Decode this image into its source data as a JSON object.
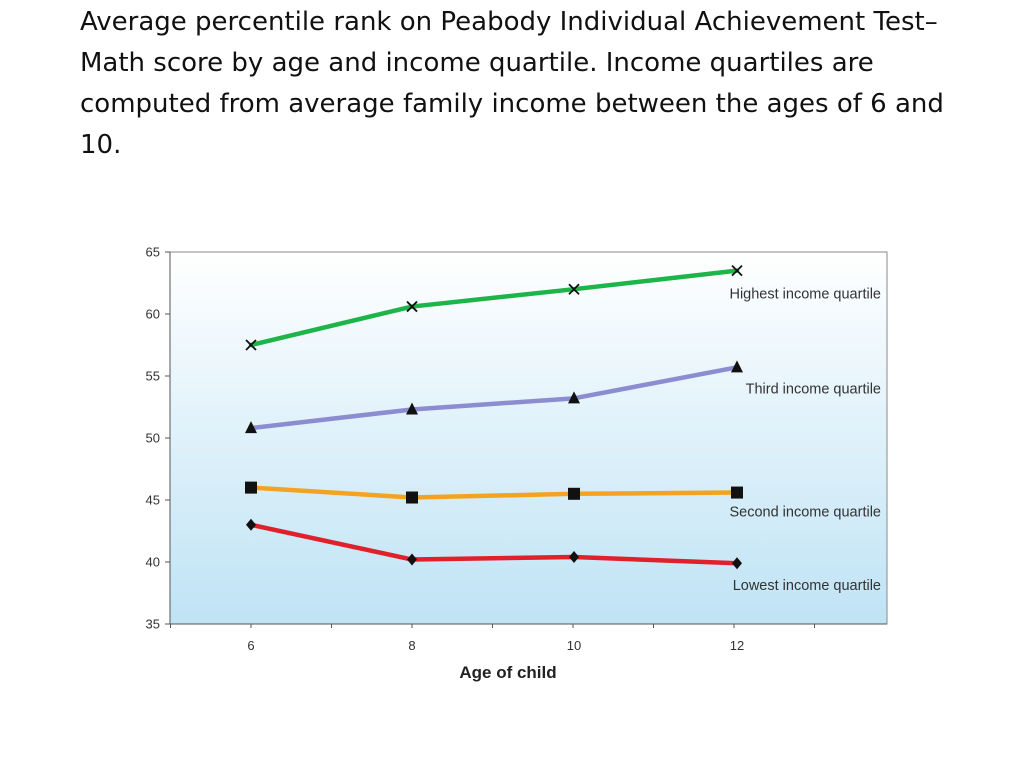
{
  "slide": {
    "title": "Average percentile rank on Peabody Individual Achievement Test–Math score by age and income quartile. Income quartiles are computed from average family income between the ages of 6 and 10."
  },
  "chart_data": {
    "type": "line",
    "xlabel": "Age of child",
    "ylabel": "",
    "x": [
      6,
      8,
      10,
      12
    ],
    "xticks": [
      "6",
      "8",
      "10",
      "12"
    ],
    "ylim": [
      35,
      65
    ],
    "yticks": [
      "35",
      "40",
      "45",
      "50",
      "55",
      "60",
      "65"
    ],
    "grid": false,
    "legend": "inline labels at right end of each line",
    "series": [
      {
        "name": "Highest income quartile",
        "values": [
          57.5,
          60.6,
          62.0,
          63.5
        ],
        "color": "#1db44a",
        "marker": "x"
      },
      {
        "name": "Third income quartile",
        "values": [
          50.8,
          52.3,
          53.2,
          55.7
        ],
        "color": "#8c8cd0",
        "marker": "triangle"
      },
      {
        "name": "Second income quartile",
        "values": [
          46.0,
          45.2,
          45.5,
          45.6
        ],
        "color": "#f3a321",
        "marker": "square"
      },
      {
        "name": "Lowest income quartile",
        "values": [
          43.0,
          40.2,
          40.4,
          39.9
        ],
        "color": "#e0202a",
        "marker": "diamond"
      }
    ],
    "background_gradient": [
      "#ffffff",
      "#bfe3f5"
    ]
  }
}
